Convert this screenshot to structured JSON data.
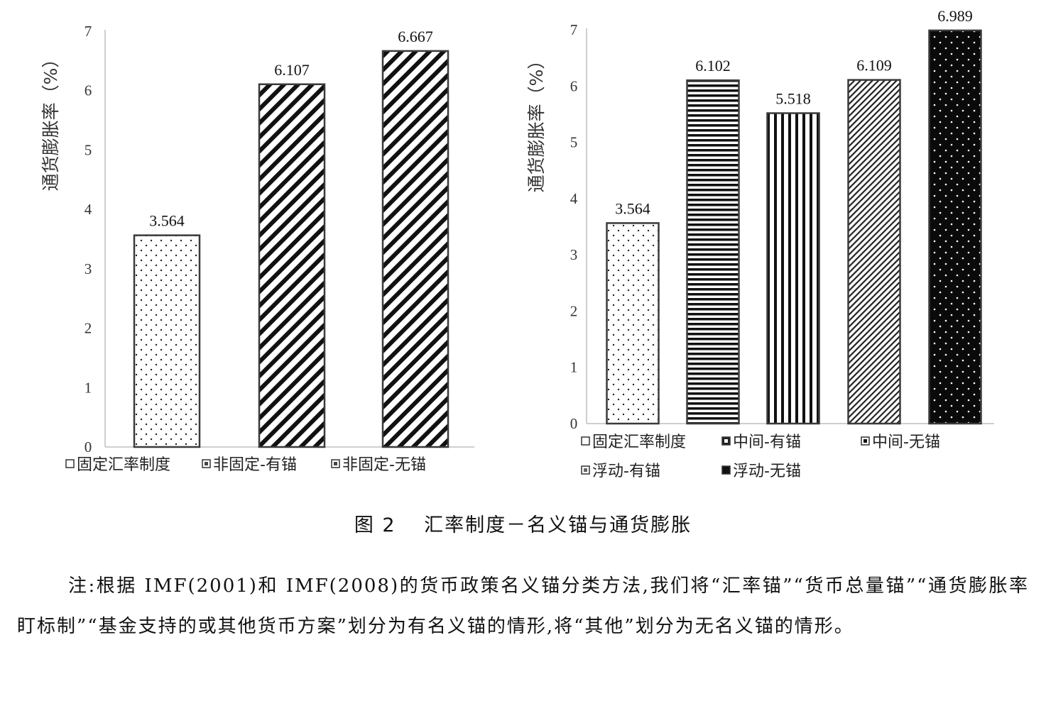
{
  "chart_data": [
    {
      "type": "bar",
      "categories": [
        "固定汇率制度",
        "非固定-有锚",
        "非固定-无锚"
      ],
      "values": [
        3.564,
        6.107,
        6.667
      ],
      "value_labels": [
        "3.564",
        "6.107",
        "6.667"
      ],
      "ylabel": "通货膨胀率（%）",
      "ylim": [
        0,
        7
      ],
      "yticks": [
        "0",
        "1",
        "2",
        "3",
        "4",
        "5",
        "6",
        "7"
      ],
      "patterns": [
        "dots",
        "diagonal",
        "diagonal"
      ],
      "grid": false,
      "legend": "bottom"
    },
    {
      "type": "bar",
      "categories": [
        "固定汇率制度",
        "中间-有锚",
        "中间-无锚",
        "浮动-有锚",
        "浮动-无锚"
      ],
      "values": [
        3.564,
        6.102,
        5.518,
        6.109,
        6.989
      ],
      "value_labels": [
        "3.564",
        "6.102",
        "5.518",
        "6.109",
        "6.989"
      ],
      "ylabel": "通货膨胀率（%）",
      "ylim": [
        0,
        7
      ],
      "yticks": [
        "0",
        "1",
        "2",
        "3",
        "4",
        "5",
        "6",
        "7"
      ],
      "patterns": [
        "dots",
        "horizontal",
        "vertical",
        "fine-diagonal",
        "dark-dots"
      ],
      "grid": false,
      "legend": "bottom"
    }
  ],
  "caption": "图 2　 汇率制度－名义锚与通货膨胀",
  "note": "注:根据 IMF(2001)和 IMF(2008)的货币政策名义锚分类方法,我们将“汇率锚”“货币总量锚”“通货膨胀率盯标制”“基金支持的或其他货币方案”划分为有名义锚的情形,将“其他”划分为无名义锚的情形。"
}
